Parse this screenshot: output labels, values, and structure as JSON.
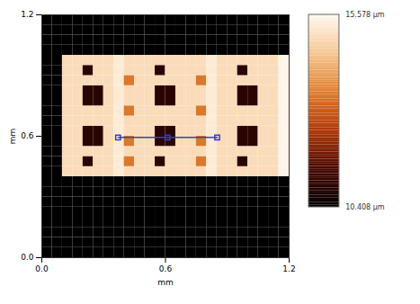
{
  "chart_data": {
    "type": "heatmap",
    "x_label": "mm",
    "y_label": "mm",
    "xlim": [
      0,
      1.2
    ],
    "ylim": [
      0,
      1.2
    ],
    "xticks": [
      {
        "value": 0,
        "label": "0.0"
      },
      {
        "value": 0.6,
        "label": "0.6"
      },
      {
        "value": 1.2,
        "label": "1.2"
      }
    ],
    "yticks": [
      {
        "value": 0,
        "label": "0.0"
      },
      {
        "value": 0.6,
        "label": "0.6"
      },
      {
        "value": 1.2,
        "label": "1.2"
      }
    ],
    "x_edges": [
      0,
      0.05,
      0.1,
      0.15,
      0.2,
      0.25,
      0.3,
      0.35,
      0.4,
      0.45,
      0.5,
      0.55,
      0.6,
      0.65,
      0.7,
      0.75,
      0.8,
      0.85,
      0.9,
      0.95,
      1.0,
      1.05,
      1.1,
      1.15,
      1.2
    ],
    "y_edges": [
      0,
      0.05,
      0.1,
      0.15,
      0.2,
      0.25,
      0.3,
      0.35,
      0.4,
      0.45,
      0.5,
      0.55,
      0.6,
      0.65,
      0.7,
      0.75,
      0.8,
      0.85,
      0.9,
      0.95,
      1.0,
      1.05,
      1.1,
      1.15,
      1.2
    ],
    "z": [
      [
        10.41,
        10.41,
        10.41,
        10.41,
        10.41,
        10.41,
        10.41,
        10.41,
        10.41,
        10.41,
        10.41,
        10.41,
        10.41,
        10.41,
        10.41,
        10.41,
        10.41,
        10.41,
        10.41,
        10.41,
        10.41,
        10.41,
        10.41,
        10.41
      ],
      [
        10.41,
        10.41,
        10.41,
        10.41,
        10.41,
        10.41,
        10.41,
        10.41,
        10.41,
        10.41,
        10.41,
        10.41,
        10.41,
        10.41,
        10.41,
        10.41,
        10.41,
        10.41,
        10.41,
        10.41,
        10.41,
        10.41,
        10.41,
        10.41
      ],
      [
        10.41,
        10.41,
        10.41,
        10.41,
        10.41,
        10.41,
        10.41,
        10.41,
        10.41,
        10.41,
        10.41,
        10.41,
        10.41,
        10.41,
        10.41,
        10.41,
        10.41,
        10.41,
        10.41,
        10.41,
        10.41,
        10.41,
        10.41,
        10.41
      ],
      [
        10.41,
        10.41,
        10.41,
        10.41,
        10.41,
        10.41,
        10.41,
        10.41,
        10.41,
        10.41,
        10.41,
        10.41,
        10.41,
        10.41,
        10.41,
        10.41,
        10.41,
        10.41,
        10.41,
        10.41,
        10.41,
        10.41,
        10.41,
        10.41
      ],
      [
        10.41,
        10.41,
        10.41,
        10.41,
        10.41,
        10.41,
        10.41,
        10.41,
        10.41,
        10.41,
        10.41,
        10.41,
        10.41,
        10.41,
        10.41,
        10.41,
        10.41,
        10.41,
        10.41,
        10.41,
        10.41,
        10.41,
        10.41,
        10.41
      ],
      [
        10.41,
        10.41,
        10.41,
        10.41,
        10.41,
        10.41,
        10.41,
        10.41,
        10.41,
        10.41,
        10.41,
        10.41,
        10.41,
        10.41,
        10.41,
        10.41,
        10.41,
        10.41,
        10.41,
        10.41,
        10.41,
        10.41,
        10.41,
        10.41
      ],
      [
        10.41,
        10.41,
        10.41,
        10.41,
        10.41,
        10.41,
        10.41,
        10.41,
        10.41,
        10.41,
        10.41,
        10.41,
        10.41,
        10.41,
        10.41,
        10.41,
        10.41,
        10.41,
        10.41,
        10.41,
        10.41,
        10.41,
        10.41,
        10.41
      ],
      [
        10.41,
        10.41,
        10.41,
        10.41,
        10.41,
        10.41,
        10.41,
        10.41,
        10.41,
        10.41,
        10.41,
        10.41,
        10.41,
        10.41,
        10.41,
        10.41,
        10.41,
        10.41,
        10.41,
        10.41,
        10.41,
        10.41,
        10.41,
        10.41
      ],
      [
        10.41,
        10.41,
        15.0,
        15.0,
        15.0,
        15.0,
        15.0,
        15.3,
        15.0,
        15.0,
        15.0,
        15.0,
        15.0,
        15.0,
        15.0,
        15.0,
        15.3,
        15.0,
        15.0,
        15.0,
        15.0,
        15.0,
        15.0,
        15.5
      ],
      [
        10.41,
        10.41,
        15.0,
        15.0,
        11.0,
        15.0,
        15.0,
        15.3,
        13.4,
        15.0,
        15.0,
        11.0,
        15.0,
        15.0,
        15.0,
        13.4,
        15.3,
        15.0,
        15.0,
        11.0,
        15.0,
        15.0,
        15.0,
        15.5
      ],
      [
        10.41,
        10.41,
        15.0,
        15.0,
        15.0,
        15.0,
        15.0,
        15.3,
        15.0,
        15.0,
        15.0,
        15.0,
        15.0,
        15.0,
        15.0,
        15.0,
        15.3,
        15.0,
        15.0,
        15.0,
        15.0,
        15.0,
        15.0,
        15.5
      ],
      [
        10.41,
        10.41,
        15.0,
        15.0,
        11.0,
        11.0,
        15.0,
        15.3,
        13.4,
        15.0,
        15.0,
        11.0,
        11.0,
        15.0,
        15.0,
        13.4,
        15.3,
        15.0,
        15.0,
        11.0,
        11.0,
        15.0,
        15.0,
        15.5
      ],
      [
        10.41,
        10.41,
        15.0,
        15.0,
        11.0,
        11.0,
        15.0,
        15.3,
        15.0,
        15.0,
        15.0,
        11.0,
        11.0,
        15.0,
        15.0,
        15.0,
        15.3,
        15.0,
        15.0,
        11.0,
        11.0,
        15.0,
        15.0,
        15.5
      ],
      [
        10.41,
        10.41,
        15.0,
        15.0,
        15.0,
        15.0,
        15.0,
        15.3,
        15.0,
        15.0,
        15.0,
        15.0,
        15.0,
        15.0,
        15.0,
        15.0,
        15.3,
        15.0,
        15.0,
        15.0,
        15.0,
        15.0,
        15.0,
        15.5
      ],
      [
        10.41,
        10.41,
        15.0,
        15.0,
        15.0,
        15.0,
        15.0,
        15.3,
        13.4,
        15.0,
        15.0,
        15.0,
        15.0,
        15.0,
        15.0,
        13.4,
        15.3,
        15.0,
        15.0,
        15.0,
        15.0,
        15.0,
        15.0,
        15.5
      ],
      [
        10.41,
        10.41,
        15.0,
        15.0,
        11.0,
        11.0,
        15.0,
        15.3,
        15.0,
        15.0,
        15.0,
        11.0,
        11.0,
        15.0,
        15.0,
        15.0,
        15.3,
        15.0,
        15.0,
        11.0,
        11.0,
        15.0,
        15.0,
        15.5
      ],
      [
        10.41,
        10.41,
        15.0,
        15.0,
        11.0,
        11.0,
        15.0,
        15.3,
        15.0,
        15.0,
        15.0,
        11.0,
        11.0,
        15.0,
        15.0,
        15.0,
        15.3,
        15.0,
        15.0,
        11.0,
        11.0,
        15.0,
        15.0,
        15.5
      ],
      [
        10.41,
        10.41,
        15.0,
        15.0,
        15.0,
        15.0,
        15.0,
        15.3,
        13.4,
        15.0,
        15.0,
        15.0,
        15.0,
        15.0,
        15.0,
        13.4,
        15.3,
        15.0,
        15.0,
        15.0,
        15.0,
        15.0,
        15.0,
        15.5
      ],
      [
        10.41,
        10.41,
        15.0,
        15.0,
        11.0,
        15.0,
        15.0,
        15.3,
        15.0,
        15.0,
        15.0,
        11.0,
        15.0,
        15.0,
        15.0,
        15.0,
        15.3,
        15.0,
        15.0,
        11.0,
        15.0,
        15.0,
        15.0,
        15.5
      ],
      [
        10.41,
        10.41,
        15.0,
        15.0,
        15.0,
        15.0,
        15.0,
        15.3,
        15.0,
        15.0,
        15.0,
        15.0,
        15.0,
        15.0,
        15.0,
        15.0,
        15.3,
        15.0,
        15.0,
        15.0,
        15.0,
        15.0,
        15.0,
        15.5
      ],
      [
        10.41,
        10.41,
        10.41,
        10.41,
        10.41,
        10.41,
        10.41,
        10.41,
        10.41,
        10.41,
        10.41,
        10.41,
        10.41,
        10.41,
        10.41,
        10.41,
        10.41,
        10.41,
        10.41,
        10.41,
        10.41,
        10.41,
        10.41,
        10.41
      ],
      [
        10.41,
        10.41,
        10.41,
        10.41,
        10.41,
        10.41,
        10.41,
        10.41,
        10.41,
        10.41,
        10.41,
        10.41,
        10.41,
        10.41,
        10.41,
        10.41,
        10.41,
        10.41,
        10.41,
        10.41,
        10.41,
        10.41,
        10.41,
        10.41
      ],
      [
        10.41,
        10.41,
        10.41,
        10.41,
        10.41,
        10.41,
        10.41,
        10.41,
        10.41,
        10.41,
        10.41,
        10.41,
        10.41,
        10.41,
        10.41,
        10.41,
        10.41,
        10.41,
        10.41,
        10.41,
        10.41,
        10.41,
        10.41,
        10.41
      ],
      [
        10.41,
        10.41,
        10.41,
        10.41,
        10.41,
        10.41,
        10.41,
        10.41,
        10.41,
        10.41,
        10.41,
        10.41,
        10.41,
        10.41,
        10.41,
        10.41,
        10.41,
        10.41,
        10.41,
        10.41,
        10.41,
        10.41,
        10.41,
        10.41
      ]
    ],
    "colorbar": {
      "range": [
        10.408,
        15.578
      ],
      "ticks": [
        {
          "value": 10.408,
          "label": "10.408 µm"
        },
        {
          "value": 15.578,
          "label": "15.578 µm"
        }
      ]
    },
    "profile": {
      "x": [
        0.37,
        0.61,
        0.851
      ],
      "y": [
        0.594,
        0.594,
        0.594
      ],
      "color": "#3a3acc",
      "marker": "square"
    }
  }
}
